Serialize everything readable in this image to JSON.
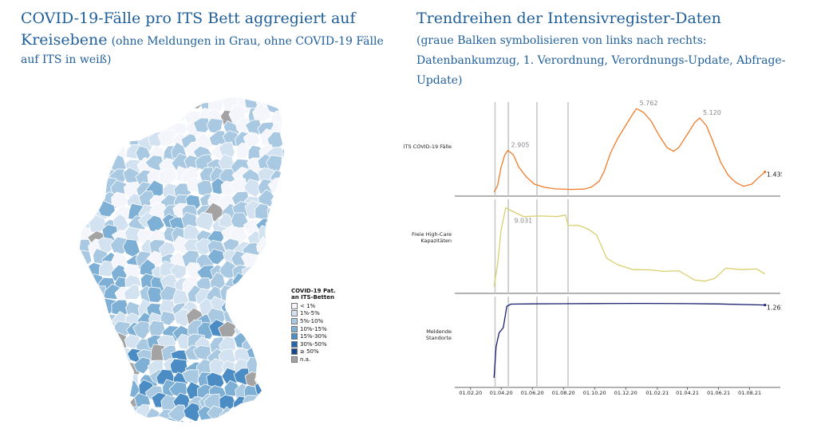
{
  "left_title": {
    "main": "COVID-19-Fälle pro ITS Bett aggregiert auf Kreisebene",
    "note": "(ohne Meldungen in Grau, ohne COVID-19 Fälle auf ITS in weiß)"
  },
  "right_title": {
    "main": "Trendreihen der Intensivregister-Daten",
    "note": "(graue Balken symbolisieren von links nach rechts: Datenbankumzug, 1. Verordnung, Verordnungs-Update, Abfrage-Update)"
  },
  "map": {
    "legend_title": [
      "COVID-19 Pat.",
      "an ITS-Betten"
    ],
    "classes": [
      {
        "label": "< 1%",
        "color": "#f4f6fb"
      },
      {
        "label": "1%-5%",
        "color": "#d2e2f0"
      },
      {
        "label": "5%-10%",
        "color": "#a9c9e2"
      },
      {
        "label": "10%-15%",
        "color": "#7eafd5"
      },
      {
        "label": "15%-30%",
        "color": "#4b8cc4"
      },
      {
        "label": "30%-50%",
        "color": "#2467ad"
      },
      {
        "label": "≥ 50%",
        "color": "#17468a"
      },
      {
        "label": "n.a.",
        "color": "#a3a3a3"
      }
    ]
  },
  "chart_data": {
    "type": "line",
    "x_ticks": [
      "01.02.20",
      "01.04.20",
      "01.06.20",
      "01.08.20",
      "01.10.20",
      "01.12.20",
      "01.02.21",
      "01.04.21",
      "01.06.21",
      "01.08.21"
    ],
    "marker_dates": [
      "2020-03-20",
      "2020-04-15",
      "2020-06-10",
      "2020-08-10"
    ],
    "marker_color": "#c8c8c8",
    "series": [
      {
        "name": "ITS COVID-19 Fälle",
        "color": "#f07c2a",
        "annotations": [
          {
            "date": "2020-04-14",
            "label": "2.905"
          },
          {
            "date": "2020-12-22",
            "label": "5.762"
          },
          {
            "date": "2021-04-25",
            "label": "5.120"
          },
          {
            "date": "2021-08-31",
            "label": "1.435"
          }
        ],
        "points": [
          [
            "2020-03-18",
            50
          ],
          [
            "2020-03-25",
            500
          ],
          [
            "2020-04-01",
            1800
          ],
          [
            "2020-04-08",
            2600
          ],
          [
            "2020-04-14",
            2905
          ],
          [
            "2020-04-25",
            2600
          ],
          [
            "2020-05-05",
            1800
          ],
          [
            "2020-05-20",
            1100
          ],
          [
            "2020-06-05",
            600
          ],
          [
            "2020-06-25",
            380
          ],
          [
            "2020-07-15",
            280
          ],
          [
            "2020-08-15",
            240
          ],
          [
            "2020-09-10",
            260
          ],
          [
            "2020-09-25",
            400
          ],
          [
            "2020-10-10",
            800
          ],
          [
            "2020-10-20",
            1500
          ],
          [
            "2020-11-01",
            2700
          ],
          [
            "2020-11-15",
            3700
          ],
          [
            "2020-12-01",
            4600
          ],
          [
            "2020-12-15",
            5400
          ],
          [
            "2020-12-22",
            5762
          ],
          [
            "2021-01-05",
            5500
          ],
          [
            "2021-01-20",
            4900
          ],
          [
            "2021-02-05",
            3900
          ],
          [
            "2021-02-20",
            3100
          ],
          [
            "2021-03-05",
            2850
          ],
          [
            "2021-03-15",
            3100
          ],
          [
            "2021-03-30",
            3900
          ],
          [
            "2021-04-15",
            4800
          ],
          [
            "2021-04-25",
            5120
          ],
          [
            "2021-05-08",
            4600
          ],
          [
            "2021-05-20",
            3600
          ],
          [
            "2021-06-05",
            2100
          ],
          [
            "2021-06-20",
            1200
          ],
          [
            "2021-07-05",
            700
          ],
          [
            "2021-07-20",
            450
          ],
          [
            "2021-08-05",
            600
          ],
          [
            "2021-08-20",
            1100
          ],
          [
            "2021-08-31",
            1435
          ]
        ]
      },
      {
        "name": "Freie High-Care Kapazitäten",
        "color": "#d9cf6e",
        "annotations": [
          {
            "date": "2020-04-20",
            "label": "9.031"
          }
        ],
        "points": [
          [
            "2020-03-18",
            400
          ],
          [
            "2020-03-25",
            3000
          ],
          [
            "2020-04-01",
            7000
          ],
          [
            "2020-04-10",
            9600
          ],
          [
            "2020-04-20",
            9031
          ],
          [
            "2020-05-15",
            8600
          ],
          [
            "2020-06-15",
            8400
          ],
          [
            "2020-07-20",
            8600
          ],
          [
            "2020-08-05",
            8500
          ],
          [
            "2020-08-10",
            7600
          ],
          [
            "2020-09-01",
            7300
          ],
          [
            "2020-09-20",
            7100
          ],
          [
            "2020-10-05",
            6200
          ],
          [
            "2020-10-25",
            3800
          ],
          [
            "2020-11-15",
            2800
          ],
          [
            "2020-12-15",
            2500
          ],
          [
            "2021-01-15",
            2200
          ],
          [
            "2021-02-15",
            2300
          ],
          [
            "2021-03-15",
            2100
          ],
          [
            "2021-04-15",
            1300
          ],
          [
            "2021-05-05",
            900
          ],
          [
            "2021-05-25",
            1500
          ],
          [
            "2021-06-15",
            2400
          ],
          [
            "2021-07-15",
            2500
          ],
          [
            "2021-08-15",
            2300
          ],
          [
            "2021-08-31",
            2000
          ]
        ]
      },
      {
        "name": "Meldende Standorte",
        "color": "#1a1f71",
        "annotations": [
          {
            "date": "2021-08-31",
            "label": "1.261"
          }
        ],
        "points": [
          [
            "2020-03-18",
            100
          ],
          [
            "2020-03-22",
            600
          ],
          [
            "2020-03-28",
            820
          ],
          [
            "2020-04-05",
            900
          ],
          [
            "2020-04-12",
            1240
          ],
          [
            "2020-04-20",
            1275
          ],
          [
            "2020-06-01",
            1280
          ],
          [
            "2020-08-01",
            1282
          ],
          [
            "2020-10-01",
            1285
          ],
          [
            "2021-01-01",
            1287
          ],
          [
            "2021-04-01",
            1283
          ],
          [
            "2021-06-01",
            1278
          ],
          [
            "2021-08-31",
            1261
          ]
        ]
      }
    ]
  }
}
